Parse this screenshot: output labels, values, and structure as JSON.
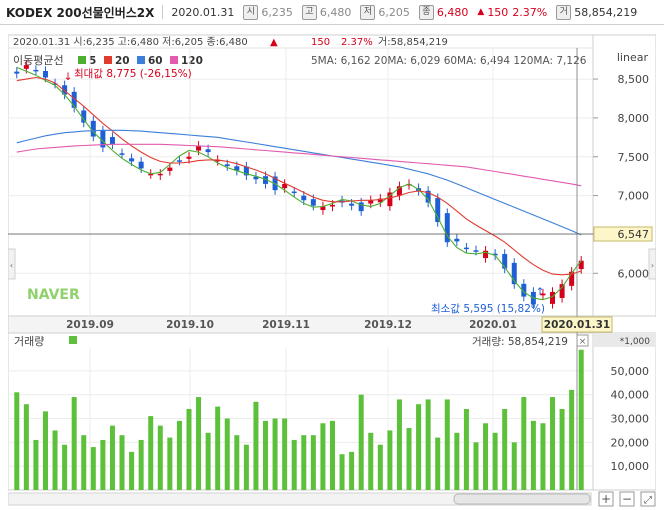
{
  "header": {
    "title": "KODEX 200선물인버스2X",
    "date": "2020.01.31",
    "open_icon": "시",
    "open": "6,235",
    "high_icon": "고",
    "high": "6,480",
    "low_icon": "저",
    "low": "6,205",
    "close_icon": "종",
    "close": "6,480",
    "change_arrow": "▲",
    "change": "150",
    "change_pct": "2.37%",
    "volume_icon": "거",
    "volume": "58,854,219"
  },
  "info_line": {
    "text": "2020.01.31  시:6,235  고:6,480  저:6,205  종:6,480",
    "arrow": "▲",
    "change": "150",
    "change_pct": "2.37%",
    "volume": "거:58,854,219"
  },
  "ma_legend": {
    "label": "이동평균선",
    "items": [
      {
        "period": "5",
        "color": "#4caf30"
      },
      {
        "period": "20",
        "color": "#e03b2e"
      },
      {
        "period": "60",
        "color": "#3c7fd8"
      },
      {
        "period": "120",
        "color": "#e35bb0"
      }
    ]
  },
  "ma_values": "5MA: 6,162  20MA: 6,029  60MA: 6,494  120MA: 7,126",
  "scale_mode": "linear",
  "annotations": {
    "max_label": "최대값 8,775 (-26,15%)",
    "min_label": "최소값 5,595 (15,82%)",
    "current_price": "6,547",
    "date_cursor": "2020.01.31",
    "watermark": "NAVER"
  },
  "volume_panel": {
    "label": "거래량",
    "value_label": "거래량: 58,854,219",
    "multiplier": "*1,000"
  },
  "colors": {
    "up": "#d6001c",
    "down": "#1f5fd6",
    "volume": "#5cc03a",
    "ma5": "#4caf30",
    "ma20": "#e03b2e",
    "ma60": "#3c7fd8",
    "ma120": "#e35bb0"
  },
  "chart_data": [
    {
      "type": "line",
      "title": "KODEX 200선물인버스2X",
      "xlabel": "",
      "ylabel": "",
      "x_ticks": [
        "2019.09",
        "2019.10",
        "2019.11",
        "2019.12",
        "2020.01"
      ],
      "y_ticks": [
        6000,
        6500,
        7000,
        7500,
        8000,
        8500
      ],
      "ylim": [
        5450,
        8900
      ],
      "scale": "linear",
      "grid": true,
      "legend": "top-left",
      "series": [
        {
          "name": "5",
          "values": [
            8650,
            8600,
            8550,
            8480,
            8420,
            8300,
            8150,
            7980,
            7820,
            7700,
            7580,
            7480,
            7400,
            7330,
            7280,
            7300,
            7400,
            7510,
            7580,
            7560,
            7500,
            7420,
            7360,
            7320,
            7280,
            7250,
            7210,
            7150,
            7070,
            6980,
            6900,
            6850,
            6860,
            6900,
            6950,
            6930,
            6880,
            6860,
            6900,
            7000,
            7100,
            7150,
            7080,
            6950,
            6720,
            6480,
            6330,
            6260,
            6250,
            6270,
            6230,
            6080,
            5900,
            5760,
            5680,
            5660,
            5700,
            5820,
            6000,
            6162
          ]
        },
        {
          "name": "20",
          "values": [
            8480,
            8500,
            8520,
            8500,
            8450,
            8350,
            8250,
            8150,
            8040,
            7930,
            7830,
            7730,
            7640,
            7560,
            7490,
            7440,
            7420,
            7420,
            7430,
            7450,
            7460,
            7460,
            7440,
            7410,
            7370,
            7330,
            7280,
            7220,
            7160,
            7100,
            7040,
            6980,
            6940,
            6920,
            6920,
            6930,
            6940,
            6940,
            6950,
            6970,
            7000,
            7040,
            7060,
            7040,
            6980,
            6900,
            6800,
            6700,
            6620,
            6550,
            6480,
            6400,
            6300,
            6200,
            6110,
            6040,
            5990,
            5980,
            5990,
            6029
          ]
        },
        {
          "name": "60",
          "values": [
            7680,
            7710,
            7740,
            7770,
            7790,
            7810,
            7820,
            7830,
            7835,
            7840,
            7840,
            7840,
            7835,
            7830,
            7820,
            7810,
            7800,
            7790,
            7780,
            7770,
            7760,
            7750,
            7730,
            7710,
            7690,
            7670,
            7650,
            7630,
            7610,
            7590,
            7570,
            7550,
            7530,
            7510,
            7490,
            7470,
            7450,
            7430,
            7410,
            7390,
            7370,
            7340,
            7310,
            7280,
            7240,
            7200,
            7150,
            7100,
            7050,
            7000,
            6950,
            6900,
            6850,
            6800,
            6750,
            6700,
            6650,
            6600,
            6550,
            6494
          ]
        },
        {
          "name": "120",
          "values": [
            7560,
            7580,
            7600,
            7610,
            7620,
            7630,
            7640,
            7645,
            7650,
            7655,
            7660,
            7660,
            7660,
            7660,
            7660,
            7660,
            7655,
            7650,
            7645,
            7640,
            7635,
            7630,
            7620,
            7610,
            7600,
            7590,
            7580,
            7570,
            7560,
            7550,
            7540,
            7530,
            7520,
            7510,
            7500,
            7490,
            7480,
            7470,
            7460,
            7450,
            7440,
            7430,
            7420,
            7410,
            7400,
            7390,
            7380,
            7370,
            7350,
            7330,
            7310,
            7290,
            7270,
            7250,
            7230,
            7210,
            7190,
            7170,
            7150,
            7126
          ]
        }
      ]
    },
    {
      "type": "bar",
      "title": "거래량",
      "ylabel": "",
      "y_ticks": [
        10000,
        20000,
        30000,
        40000,
        50000
      ],
      "ylim": [
        0,
        60000
      ],
      "unit": "*1,000",
      "values": [
        41000,
        36000,
        21000,
        33000,
        25000,
        19000,
        39000,
        23000,
        18000,
        21000,
        27000,
        23000,
        16000,
        21000,
        31000,
        27000,
        22000,
        29000,
        34000,
        39000,
        24000,
        35000,
        30000,
        23000,
        19000,
        37000,
        29000,
        30000,
        30000,
        21000,
        23000,
        23000,
        28000,
        29000,
        15000,
        16000,
        40000,
        24000,
        19000,
        25000,
        38000,
        26000,
        36000,
        38000,
        22000,
        38000,
        24000,
        34000,
        20000,
        28000,
        24000,
        34000,
        20000,
        39000,
        29000,
        28000,
        39000,
        34000,
        42000,
        58854
      ]
    }
  ]
}
